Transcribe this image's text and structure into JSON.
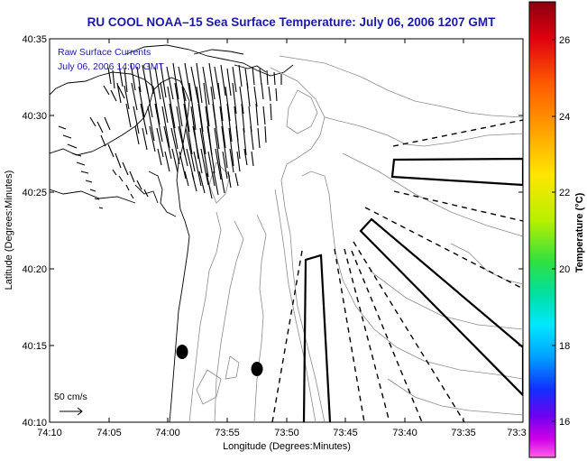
{
  "map": {
    "title": "RU COOL  NOAA–15  Sea Surface Temperature:  July 06, 2006 1207 GMT",
    "overlay_title": "Raw Surface Currents",
    "overlay_time": "July 06, 2006 14:00 GMT",
    "x_axis_label": "Longitude (Degrees:Minutes)",
    "y_axis_label": "Latitude (Degrees:Minutes)",
    "x_ticks": [
      "74:10",
      "74:05",
      "74:00",
      "73:55",
      "73:50",
      "73:45",
      "73:40",
      "73:35",
      "73:3"
    ],
    "y_ticks": [
      "40:35",
      "40:30",
      "40:25",
      "40:20",
      "40:15",
      "40:10"
    ],
    "scale_label": "50 cm/s",
    "colorbar": {
      "label": "Temperature (°C)",
      "ticks": [
        "26",
        "24",
        "22",
        "20",
        "18",
        "16"
      ]
    },
    "colors": {
      "title_text": "#1a1aa8",
      "overlay_text": "#1a1aa8",
      "lines": "#000000",
      "contours": "#8c8c8c"
    }
  }
}
